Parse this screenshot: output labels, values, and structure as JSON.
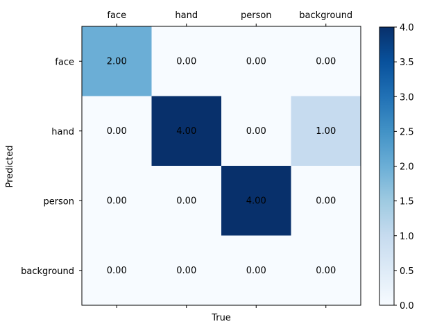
{
  "chart_data": {
    "type": "heatmap",
    "x_categories": [
      "face",
      "hand",
      "person",
      "background"
    ],
    "y_categories": [
      "face",
      "hand",
      "person",
      "background"
    ],
    "values": [
      [
        2.0,
        0.0,
        0.0,
        0.0
      ],
      [
        0.0,
        4.0,
        0.0,
        1.0
      ],
      [
        0.0,
        0.0,
        4.0,
        0.0
      ],
      [
        0.0,
        0.0,
        0.0,
        0.0
      ]
    ],
    "xlabel": "True",
    "ylabel": "Predicted",
    "x_tick_position": "top",
    "colormap": "Blues",
    "vmin": 0.0,
    "vmax": 4.0,
    "colorbar_ticks": [
      0.0,
      0.5,
      1.0,
      1.5,
      2.0,
      2.5,
      3.0,
      3.5,
      4.0
    ],
    "value_format": "2 decimals"
  }
}
